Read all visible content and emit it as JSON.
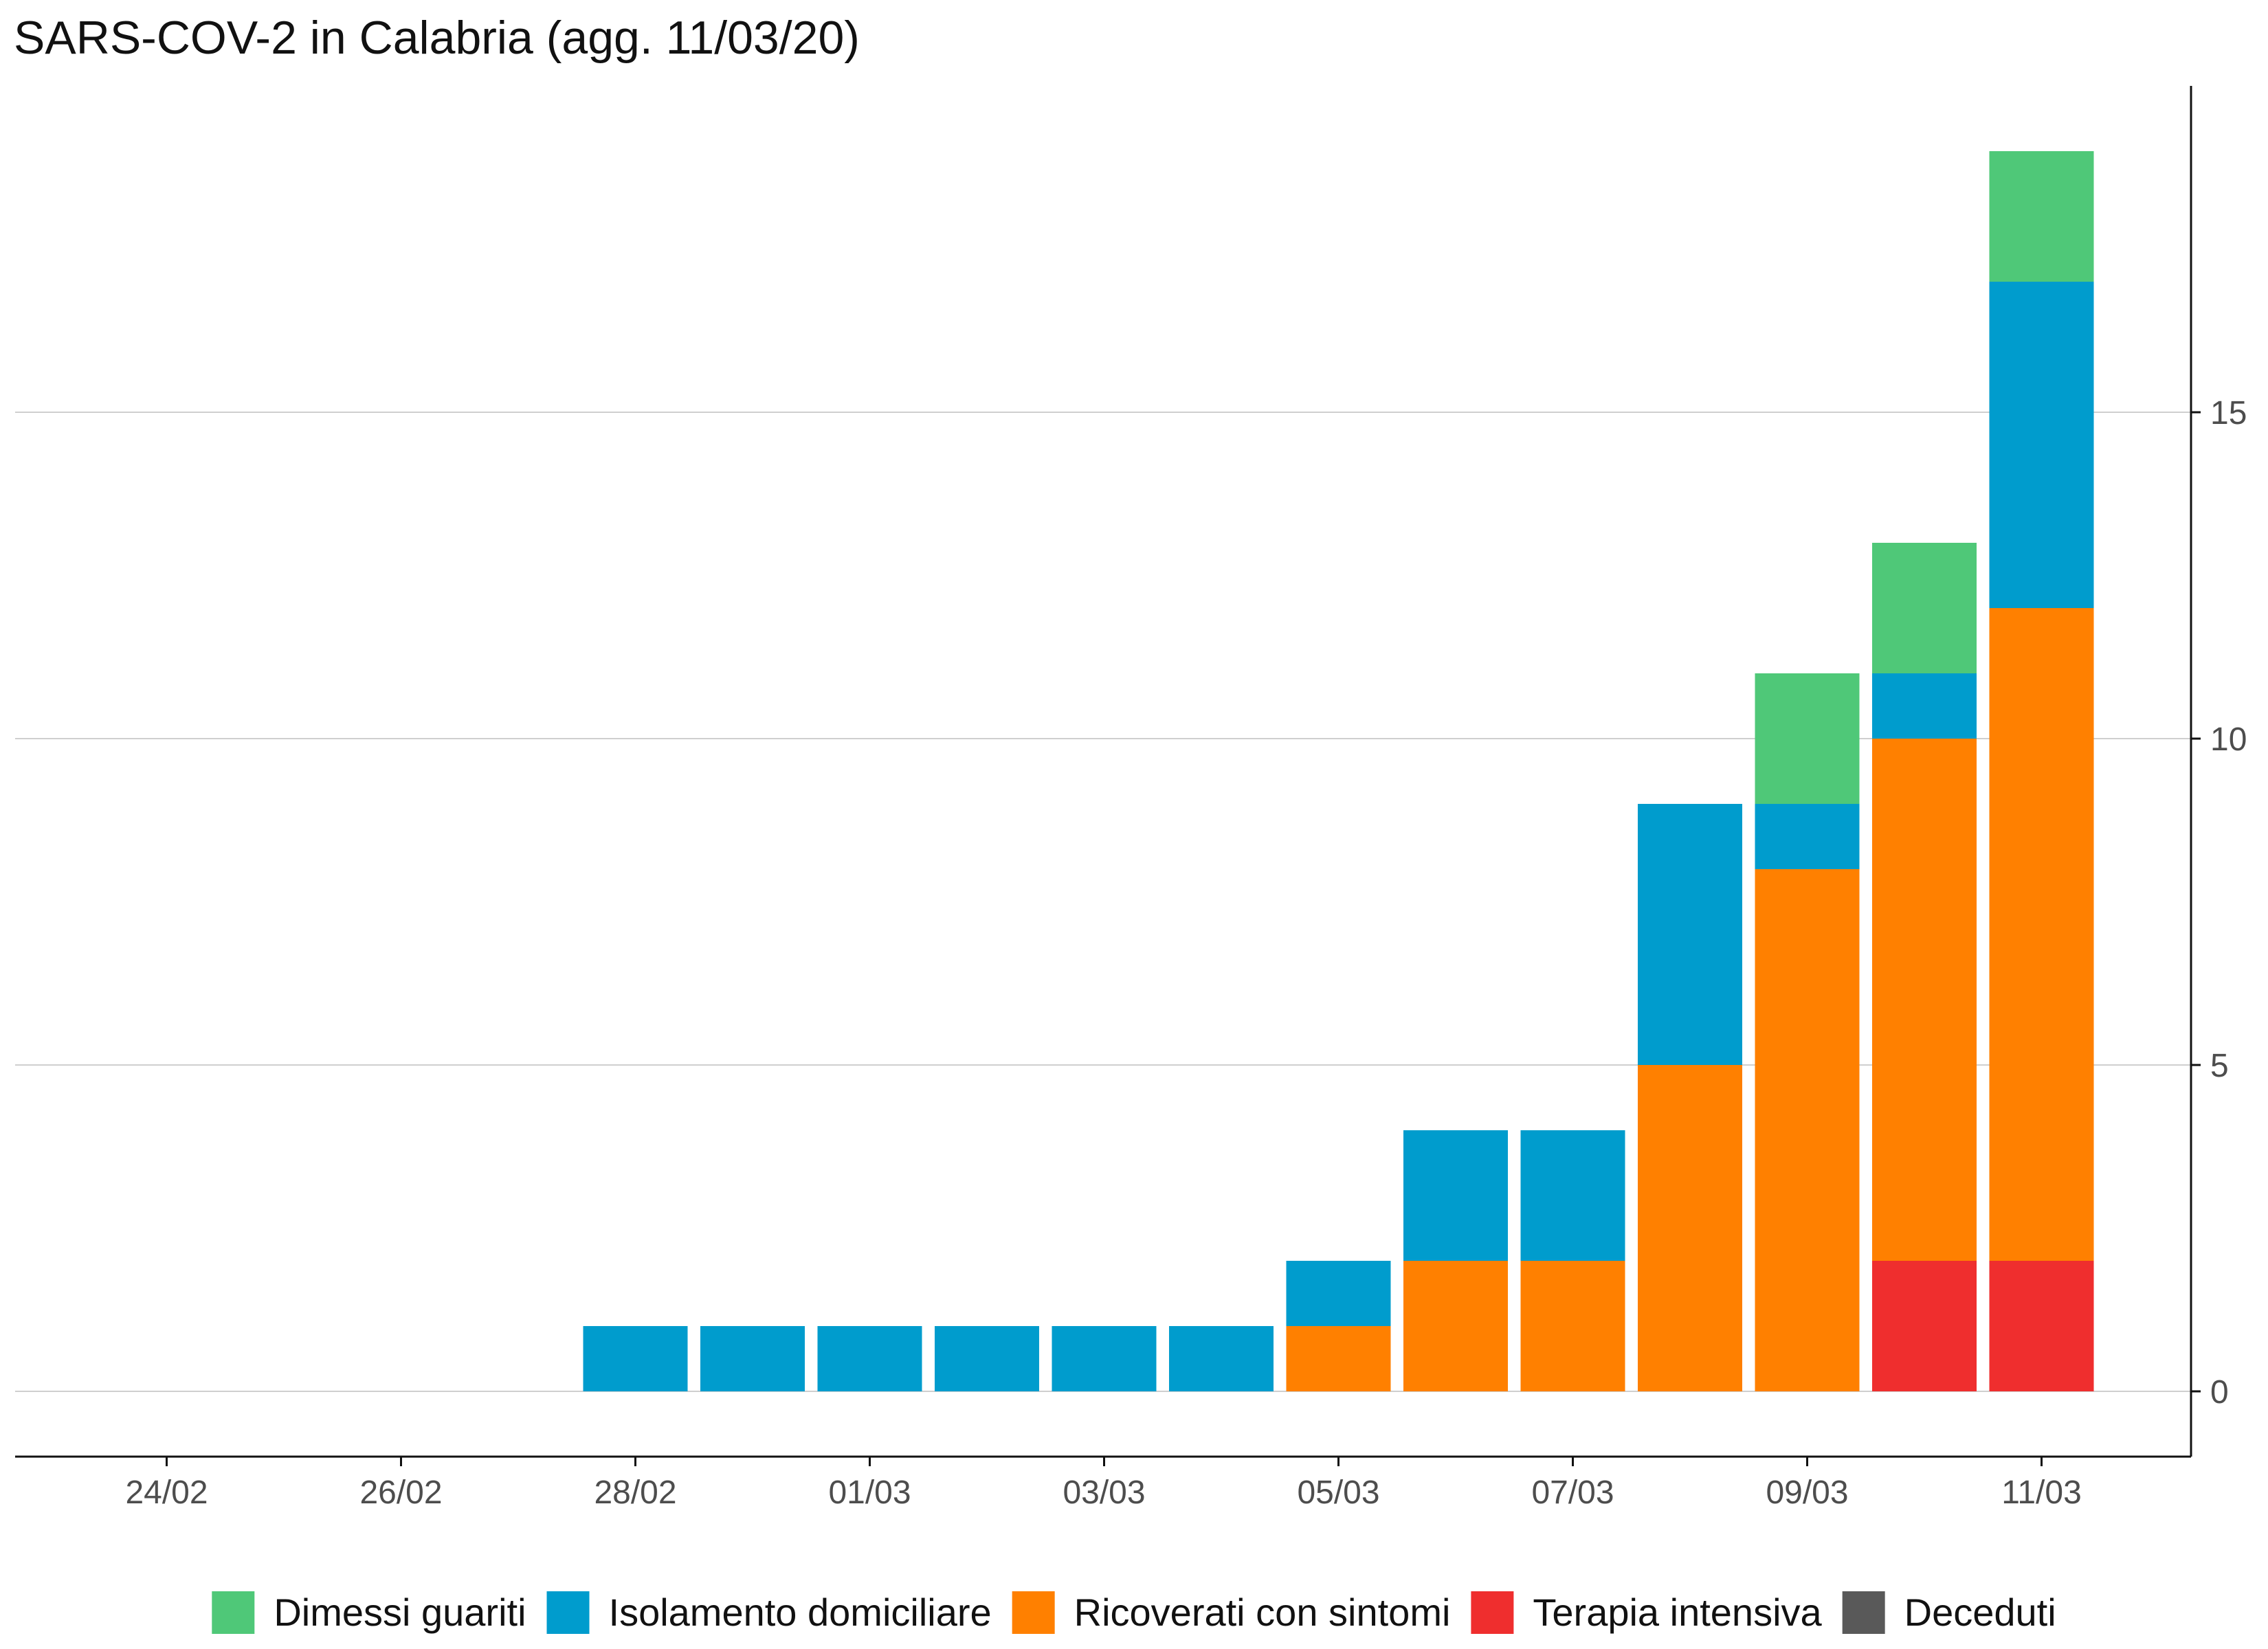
{
  "chart_data": {
    "type": "bar",
    "stacked": true,
    "title": "SARS-COV-2 in Calabria (agg. 11/03/20)",
    "xlabel": "",
    "ylabel": "",
    "y_axis_side": "right",
    "ylim": [
      -1,
      20
    ],
    "yticks": [
      0,
      5,
      10,
      15
    ],
    "grid": "horizontal",
    "legend_position": "bottom",
    "categories": [
      "23/02",
      "24/02",
      "25/02",
      "26/02",
      "27/02",
      "28/02",
      "29/02",
      "01/03",
      "02/03",
      "03/03",
      "04/03",
      "05/03",
      "06/03",
      "07/03",
      "08/03",
      "09/03",
      "10/03",
      "11/03"
    ],
    "x_tick_labels": [
      "24/02",
      "26/02",
      "28/02",
      "01/03",
      "03/03",
      "05/03",
      "07/03",
      "09/03",
      "11/03"
    ],
    "series": [
      {
        "name": "Deceduti",
        "color": "#595959",
        "values": [
          0,
          0,
          0,
          0,
          0,
          0,
          0,
          0,
          0,
          0,
          0,
          0,
          0,
          0,
          0,
          0,
          0,
          0
        ]
      },
      {
        "name": "Terapia intensiva",
        "color": "#ef2e2e",
        "values": [
          0,
          0,
          0,
          0,
          0,
          0,
          0,
          0,
          0,
          0,
          0,
          0,
          0,
          0,
          0,
          0,
          2,
          2
        ]
      },
      {
        "name": "Ricoverati con sintomi",
        "color": "#ff8000",
        "values": [
          0,
          0,
          0,
          0,
          0,
          0,
          0,
          0,
          0,
          0,
          0,
          1,
          2,
          2,
          5,
          8,
          8,
          10
        ]
      },
      {
        "name": "Isolamento domiciliare",
        "color": "#009ccd",
        "values": [
          0,
          0,
          0,
          0,
          0,
          1,
          1,
          1,
          1,
          1,
          1,
          1,
          2,
          2,
          4,
          1,
          1,
          5
        ]
      },
      {
        "name": "Dimessi guariti",
        "color": "#4fc878",
        "values": [
          0,
          0,
          0,
          0,
          0,
          0,
          0,
          0,
          0,
          0,
          0,
          0,
          0,
          0,
          0,
          2,
          2,
          2
        ]
      }
    ],
    "legend": [
      {
        "name": "Dimessi guariti",
        "color": "#4fc878"
      },
      {
        "name": "Isolamento domiciliare",
        "color": "#009ccd"
      },
      {
        "name": "Ricoverati con sintomi",
        "color": "#ff8000"
      },
      {
        "name": "Terapia intensiva",
        "color": "#ef2e2e"
      },
      {
        "name": "Deceduti",
        "color": "#595959"
      }
    ]
  }
}
